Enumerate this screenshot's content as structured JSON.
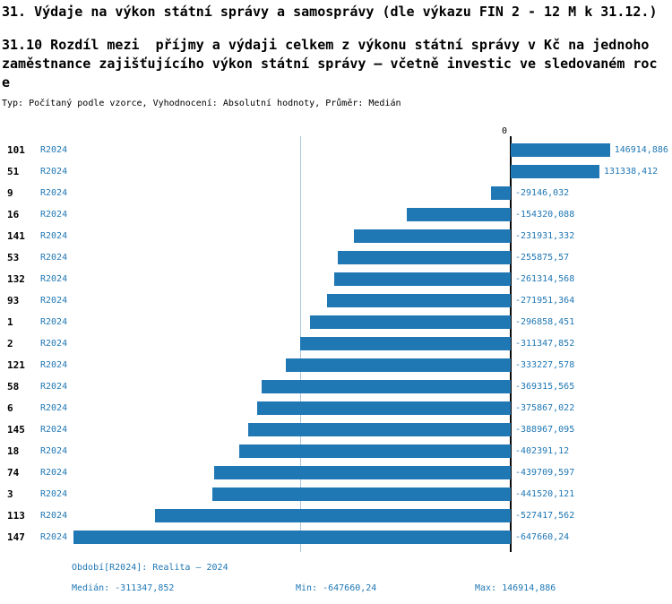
{
  "title": "31. Výdaje na výkon státní správy a samosprávy (dle výkazu FIN 2 - 12 M k 31.12.)",
  "subtitle": "31.10 Rozdíl mezi  příjmy a výdaji celkem z výkonu státní správy v Kč na jednoho zaměstnance zajišťujícího výkon státní správy – včetně investic ve sledovaném roce",
  "meta_line": "Typ: Počítaný podle vzorce, Vyhodnocení: Absolutní hodnoty, Průměr: Medián",
  "axis": {
    "zero_label": "0"
  },
  "chart_data": {
    "type": "bar",
    "orientation": "horizontal",
    "series_label": "R2024",
    "categories": [
      "101",
      "51",
      "9",
      "16",
      "141",
      "53",
      "132",
      "93",
      "1",
      "2",
      "121",
      "58",
      "6",
      "145",
      "18",
      "74",
      "3",
      "113",
      "147"
    ],
    "values": [
      146914.886,
      131338.412,
      -29146.032,
      -154320.088,
      -231931.332,
      -255875.57,
      -261314.568,
      -271951.364,
      -296858.451,
      -311347.852,
      -333227.578,
      -369315.565,
      -375867.022,
      -388967.095,
      -402391.12,
      -439709.597,
      -441520.121,
      -527417.562,
      -647660.24
    ],
    "value_labels": [
      "146914,886",
      "131338,412",
      "-29146,032",
      "-154320,088",
      "-231931,332",
      "-255875,57",
      "-261314,568",
      "-271951,364",
      "-296858,451",
      "-311347,852",
      "-333227,578",
      "-369315,565",
      "-375867,022",
      "-388967,095",
      "-402391,12",
      "-439709,597",
      "-441520,121",
      "-527417,562",
      "-647660,24"
    ],
    "xlim": [
      -660000,
      165000
    ],
    "median": -311347.852,
    "grid": false,
    "legend": "none",
    "bar_color": "#1f77b4",
    "label_color": "#1f77b4",
    "median_line_color": "#aac6dc",
    "zero_line_color": "#0a0a0a"
  },
  "footer": {
    "period": "Období[R2024]: Realita – 2024",
    "median": "Medián: -311347,852",
    "min": "Min: -647660,24",
    "max": "Max: 146914,886"
  },
  "colors": {
    "accent": "#1f77b4"
  }
}
